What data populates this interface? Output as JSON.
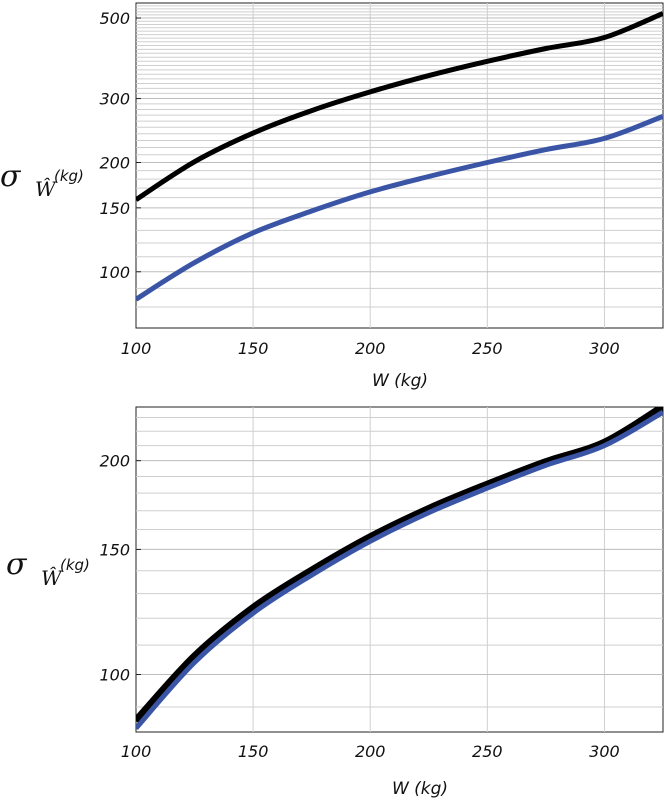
{
  "colors": {
    "series1": "#000000",
    "series2": "#3a55a6",
    "grid": "#cfcfcf"
  },
  "chart_data": [
    {
      "type": "line",
      "scale_y": "log",
      "xlabel": "W (kg)",
      "ylabel": {
        "symbol": "σ",
        "sub": "Ŵ",
        "unit": "(kg)"
      },
      "xlim": [
        100,
        325
      ],
      "ylim": [
        70,
        550
      ],
      "xticks": [
        100,
        150,
        200,
        250,
        300
      ],
      "yticks": [
        100,
        150,
        200,
        300,
        500
      ],
      "grid": true,
      "series": [
        {
          "color": "#000000",
          "x": [
            100,
            125,
            150,
            175,
            200,
            225,
            250,
            275,
            300,
            325
          ],
          "y": [
            158,
            201,
            241,
            278,
            313,
            347,
            380,
            412,
            442,
            515
          ]
        },
        {
          "color": "#3a55a6",
          "x": [
            100,
            125,
            150,
            175,
            200,
            225,
            250,
            275,
            300,
            325
          ],
          "y": [
            84,
            106,
            128,
            147,
            166,
            183,
            200,
            217,
            233,
            268
          ]
        }
      ]
    },
    {
      "type": "line",
      "scale_y": "log",
      "xlabel": "W (kg)",
      "ylabel": {
        "symbol": "σ",
        "sub": "Ŵ",
        "unit": "(kg)"
      },
      "xlim": [
        100,
        325
      ],
      "ylim": [
        83,
        238
      ],
      "xticks": [
        100,
        150,
        200,
        250,
        300
      ],
      "yticks": [
        100,
        150,
        200
      ],
      "grid": true,
      "series": [
        {
          "color": "#000000",
          "x": [
            100,
            125,
            150,
            175,
            200,
            225,
            250,
            275,
            300,
            325
          ],
          "y": [
            86,
            106,
            124,
            140,
            156,
            171,
            185,
            199,
            212,
            238
          ]
        },
        {
          "color": "#3a55a6",
          "x": [
            100,
            125,
            150,
            175,
            200,
            225,
            250,
            275,
            300,
            325
          ],
          "y": [
            84,
            104,
            122,
            138,
            154,
            169,
            183,
            197,
            210,
            234
          ]
        }
      ]
    }
  ]
}
